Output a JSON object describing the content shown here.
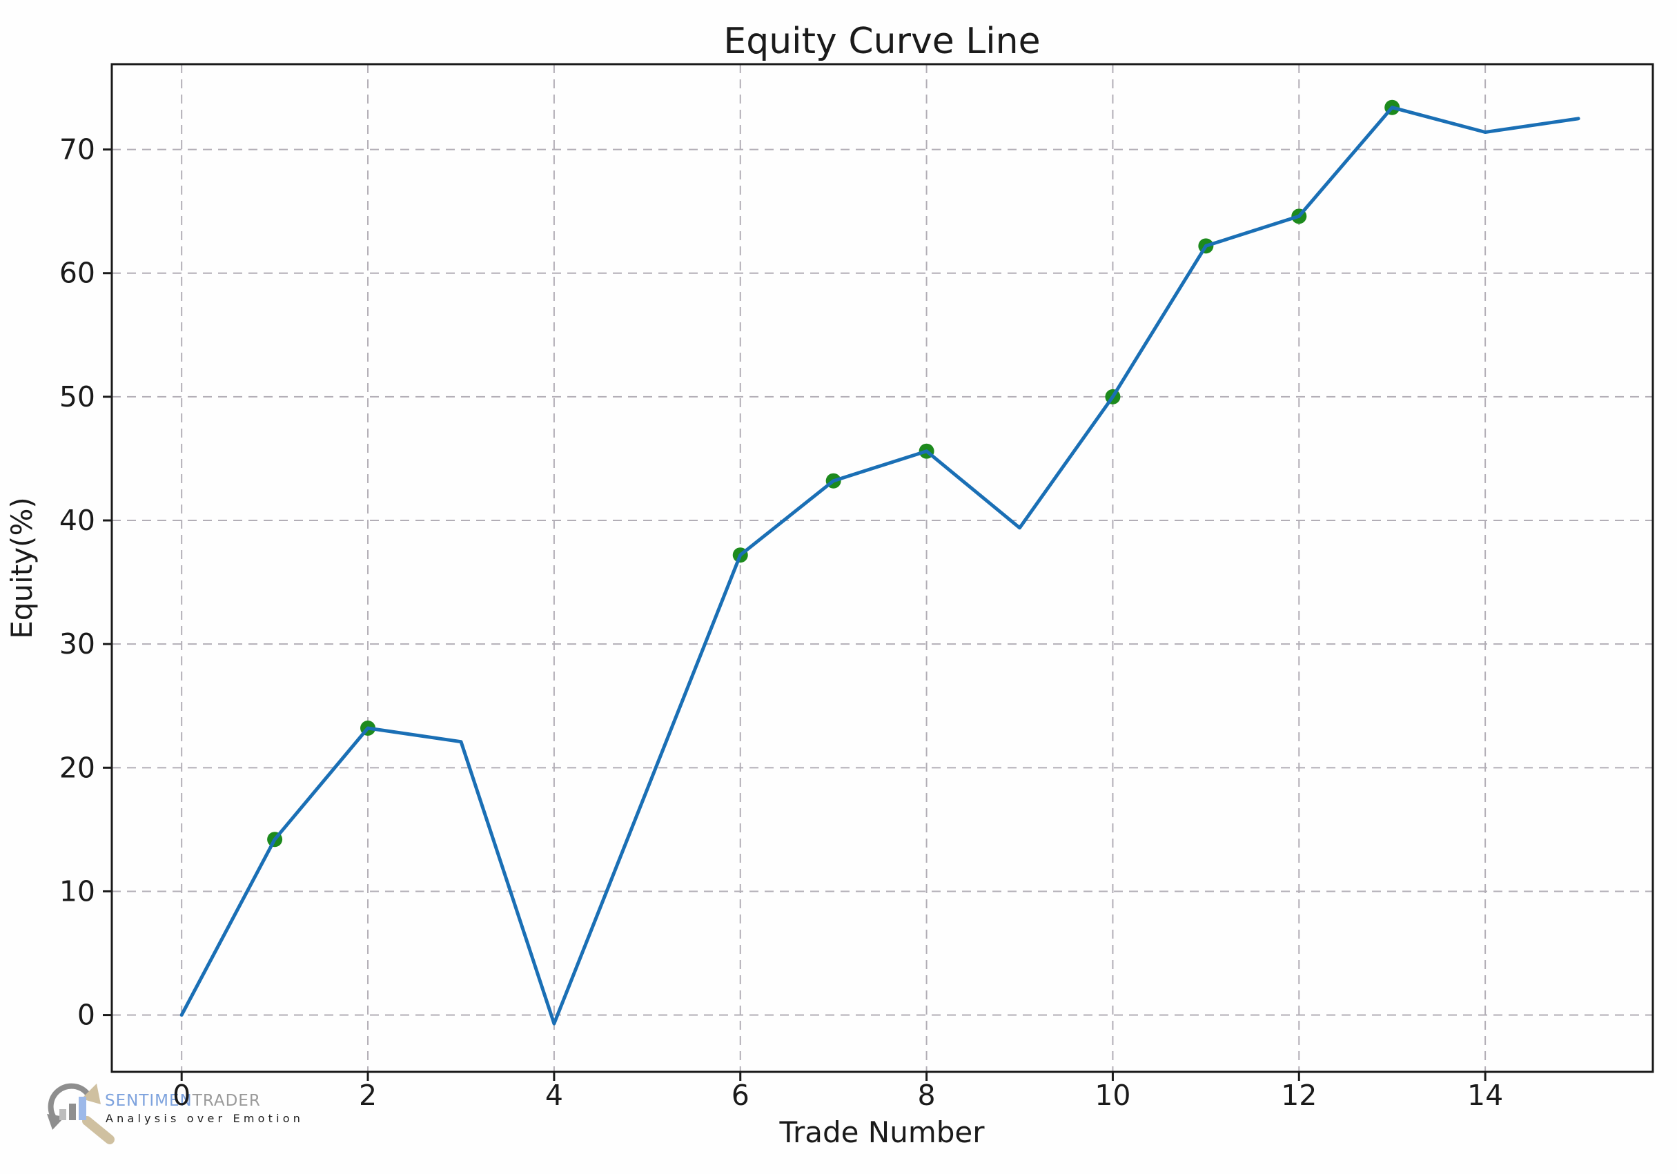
{
  "chart": {
    "title": "Equity Curve Line",
    "xlabel": "Trade Number",
    "ylabel": "Equity(%)"
  },
  "chart_data": {
    "type": "line",
    "title": "Equity Curve Line",
    "xlabel": "Trade Number",
    "ylabel": "Equity(%)",
    "x": [
      0,
      1,
      2,
      3,
      4,
      6,
      7,
      8,
      9,
      10,
      11,
      12,
      13,
      14,
      15
    ],
    "y": [
      0.0,
      14.2,
      23.2,
      22.1,
      -0.7,
      37.2,
      43.2,
      45.6,
      39.4,
      50.0,
      62.2,
      64.6,
      73.4,
      71.4,
      72.5
    ],
    "marker_x": [
      1,
      2,
      6,
      7,
      8,
      10,
      11,
      12,
      13
    ],
    "xticks": [
      0,
      2,
      4,
      6,
      8,
      10,
      12,
      14
    ],
    "yticks": [
      0,
      10,
      20,
      30,
      40,
      50,
      60,
      70
    ],
    "xlim": [
      -0.75,
      15.8
    ],
    "ylim": [
      -4.6,
      76.9
    ],
    "grid": true,
    "legend": "none",
    "line_color": "#1a6fb5",
    "marker_color": "#1d8a1d",
    "grid_color": "#b2aeb6",
    "spine_color": "#1a1a1a"
  },
  "watermark": {
    "brand_primary": "SENTIMEN",
    "brand_secondary": "TRADER",
    "tagline": "Analysis over Emotion",
    "colors": {
      "primary": "#7da2dd",
      "secondary": "#9a9a9a",
      "tagline": "#a3a3a3",
      "arc": "#8e8e8e",
      "handle": "#cfc0a0",
      "bar_small": "#bdbdbd",
      "bar_mid": "#8f8f8f",
      "bar_tall": "#9db9e9"
    }
  }
}
